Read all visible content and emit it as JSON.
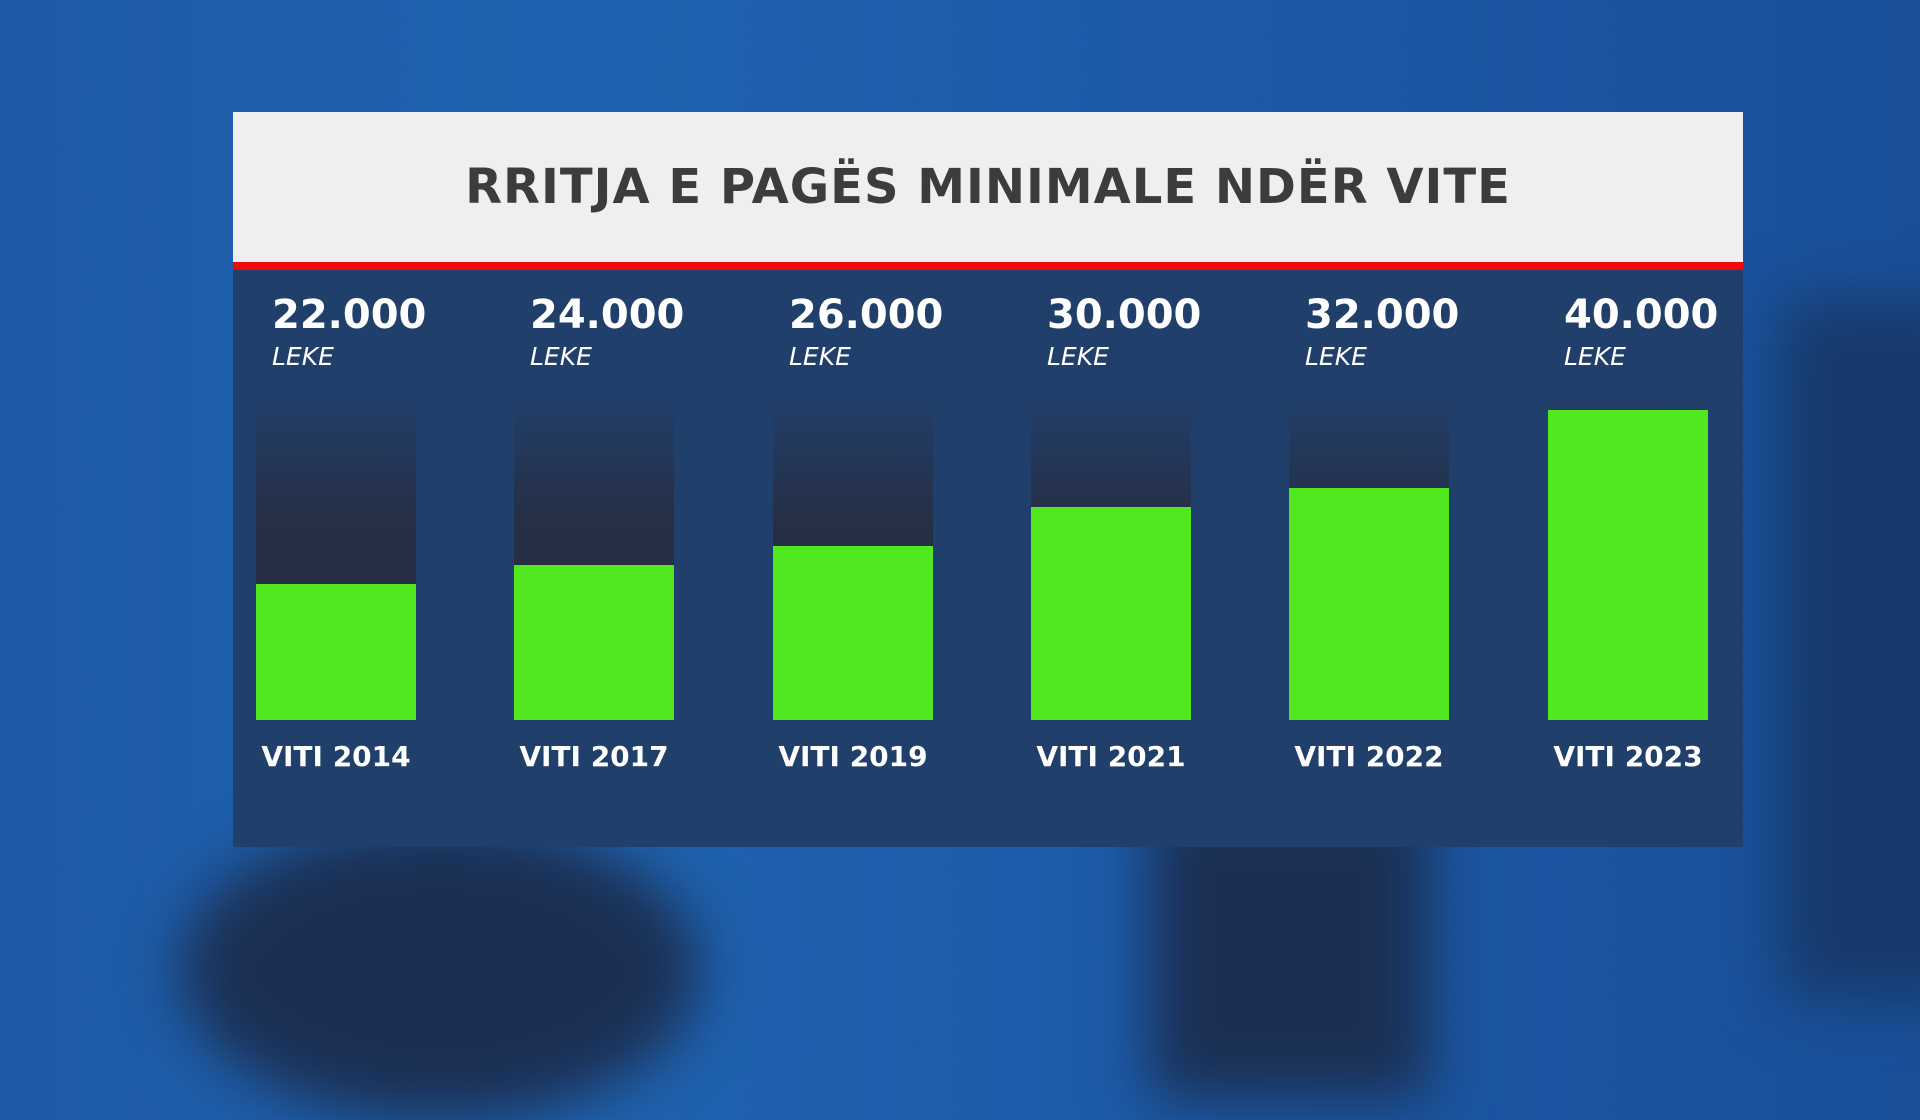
{
  "chart_data": {
    "type": "bar",
    "title": "RRITJA E PAGËS MINIMALE NDËR VITE",
    "categories": [
      "VITI 2014",
      "VITI 2017",
      "VITI 2019",
      "VITI 2021",
      "VITI 2022",
      "VITI 2023"
    ],
    "values": [
      22000,
      24000,
      26000,
      30000,
      32000,
      40000
    ],
    "value_labels": [
      "22.000",
      "24.000",
      "26.000",
      "30.000",
      "32.000",
      "40.000"
    ],
    "unit": "LEKE",
    "ylim": [
      8000,
      40000
    ],
    "grid": false,
    "colors": {
      "bar": "#52e820",
      "header_bg": "#efeff0",
      "accent_line": "#ee0a0a",
      "panel": "#213f6b",
      "title": "#3c3c3c"
    }
  }
}
